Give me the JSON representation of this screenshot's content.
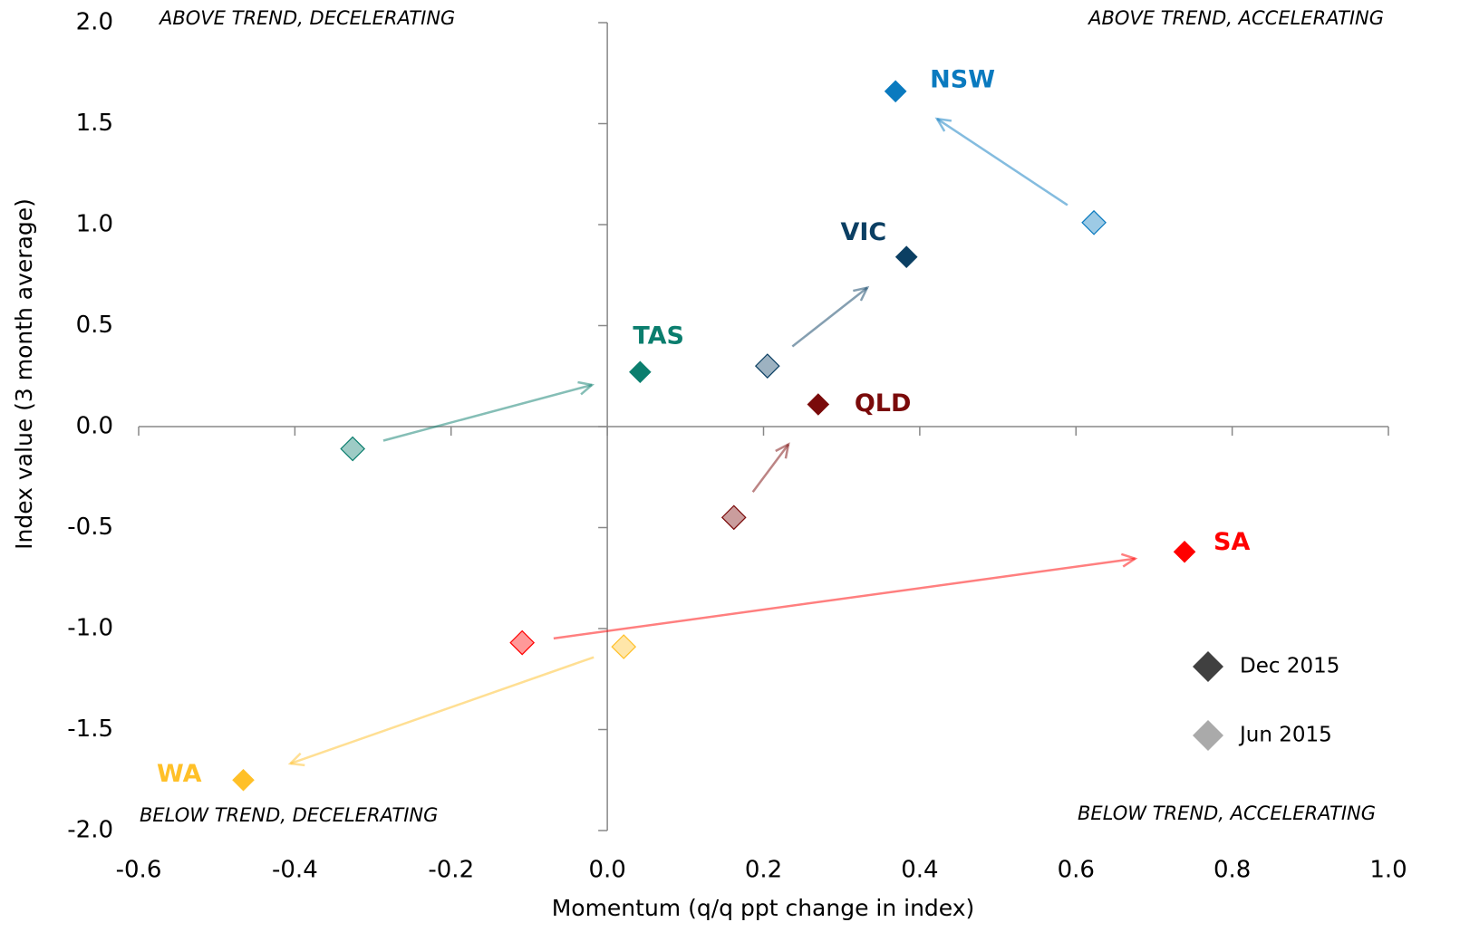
{
  "chart_data": {
    "type": "scatter",
    "x_label": "Momentum (q/q ppt change in index)",
    "y_label": "Index value (3 month average)",
    "annotations": [
      "ABOVE TREND, DECELERATING",
      "ABOVE TREND, ACCELERATING",
      "BELOW TREND, DECELERATING",
      "BELOW TREND, ACCELERATING"
    ],
    "periods": [
      {
        "name": "Dec 2015",
        "color": "#404040"
      },
      {
        "name": "Jun 2015",
        "color": "#aaaaaa"
      }
    ],
    "series": [
      {
        "name": "NSW",
        "color": "#0a7abf",
        "x": [
          0.369,
          0.623
        ],
        "values": [
          1.66,
          1.01
        ]
      },
      {
        "name": "VIC",
        "color": "#0b3f63",
        "x": [
          0.383,
          0.205
        ],
        "values": [
          0.84,
          0.3
        ]
      },
      {
        "name": "TAS",
        "color": "#0b7e6e",
        "x": [
          0.042,
          -0.326
        ],
        "values": [
          0.27,
          -0.11
        ]
      },
      {
        "name": "QLD",
        "color": "#7a0a0a",
        "x": [
          0.27,
          0.162
        ],
        "values": [
          0.11,
          -0.45
        ]
      },
      {
        "name": "SA",
        "color": "#ff0000",
        "x": [
          0.739,
          -0.109
        ],
        "values": [
          -0.62,
          -1.07
        ]
      },
      {
        "name": "WA",
        "color": "#ffc028",
        "x": [
          -0.466,
          0.021
        ],
        "values": [
          -1.75,
          -1.09
        ]
      }
    ],
    "xlim": [
      -0.6,
      1.0
    ],
    "xticks": [
      -0.6,
      -0.4,
      -0.2,
      {
        "value": 0,
        "label": "0.0"
      },
      0.2,
      0.4,
      0.6,
      0.8,
      {
        "value": 1,
        "label": "1.0"
      }
    ],
    "ylim": [
      -2,
      2
    ],
    "yticks": [
      {
        "value": -2,
        "label": "-2.0"
      },
      -1.5,
      {
        "value": -1,
        "label": "-1.0"
      },
      -0.5,
      {
        "value": 0,
        "label": "0.0"
      },
      0.5,
      {
        "value": 1,
        "label": "1.0"
      },
      1.5,
      {
        "value": 2,
        "label": "2.0"
      }
    ]
  }
}
